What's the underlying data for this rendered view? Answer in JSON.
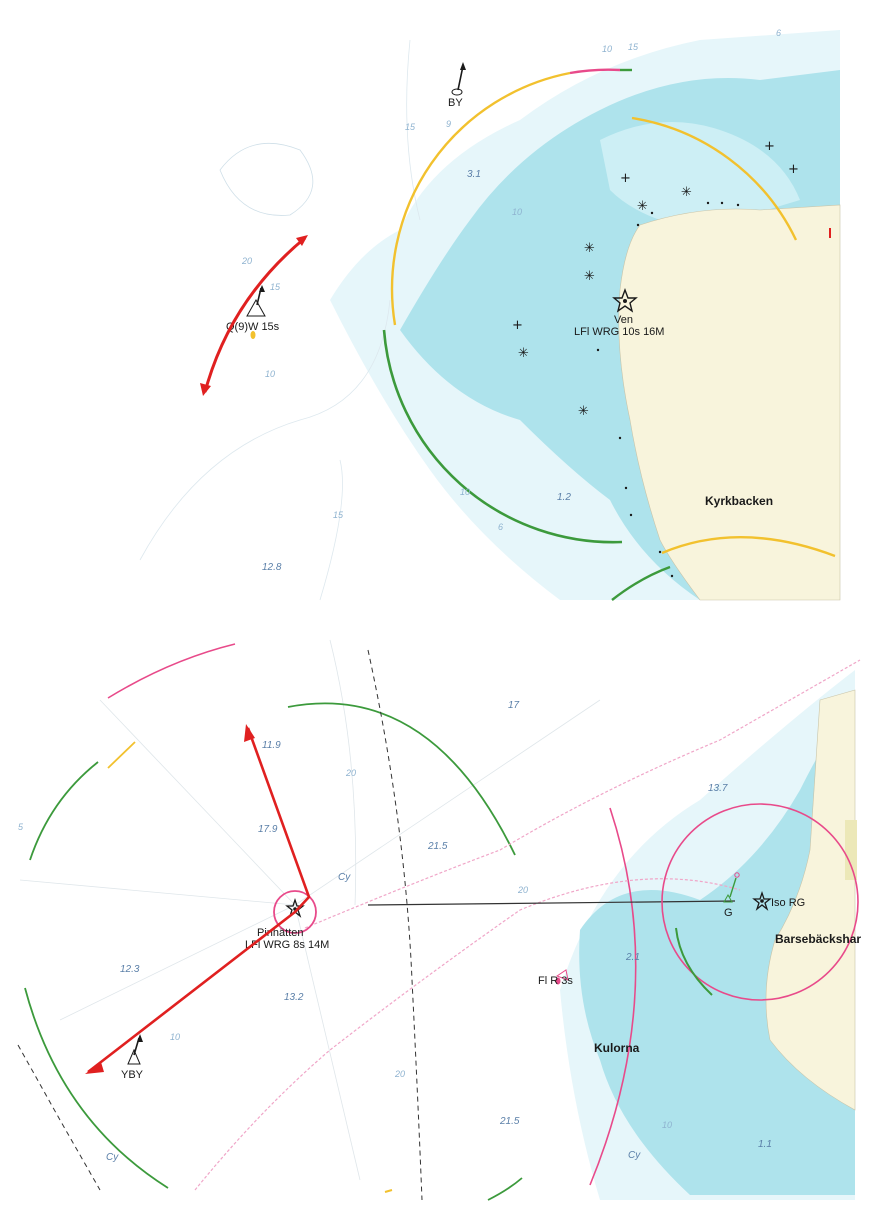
{
  "top_chart": {
    "place_name": "Kyrkbacken",
    "lighthouse": {
      "name": "Ven",
      "characteristic": "LFl WRG 10s 16M"
    },
    "buoy_north": {
      "label": "BY"
    },
    "buoy_west": {
      "label": "Q(9)W 15s"
    },
    "depths": [
      "3.1",
      "1.2",
      "12.8"
    ],
    "contours": [
      "15",
      "10",
      "9",
      "20",
      "15",
      "10",
      "15",
      "10",
      "6",
      "6",
      "10",
      "15"
    ]
  },
  "bottom_chart": {
    "lighthouse": {
      "name": "Pinhätten",
      "characteristic": "LFl WRG 8s 14M"
    },
    "harbour_light": {
      "characteristic": "Iso RG",
      "green_mark": "G"
    },
    "harbour_name": "Barsebäckshar",
    "shoal_name": "Kulorna",
    "red_buoy": {
      "characteristic": "Fl R 3s"
    },
    "buoy_yby": {
      "label": "YBY"
    },
    "depths": [
      "17",
      "13.7",
      "11.9",
      "17.9",
      "21.5",
      "12.3",
      "13.2",
      "21.5",
      "2.1",
      "1.1"
    ],
    "contours": [
      "20",
      "20",
      "20",
      "10",
      "10",
      "5"
    ],
    "cables": [
      "Cy",
      "Cy",
      "Cy"
    ]
  },
  "colors": {
    "shallow_water": "#aee3ec",
    "light_water": "#e6f6fa",
    "land": "#f8f4dc",
    "sector_yellow": "#f2c12e",
    "sector_green": "#3c9a3c",
    "sector_red": "#e84a8a",
    "arrow_red": "#e02020"
  }
}
